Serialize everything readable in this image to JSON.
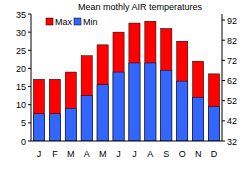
{
  "chart_data": {
    "type": "bar",
    "title": "Mean mothly AIR temperatures",
    "categories": [
      "J",
      "F",
      "M",
      "A",
      "M",
      "J",
      "J",
      "A",
      "S",
      "O",
      "N",
      "D"
    ],
    "series": [
      {
        "name": "Max",
        "color": "#ff0000",
        "values": [
          17,
          17,
          19,
          23.5,
          26.5,
          30,
          32.5,
          33,
          31,
          27.5,
          22,
          18.5
        ]
      },
      {
        "name": "Min",
        "color": "#3366ff",
        "values": [
          7.5,
          7.5,
          9,
          12.5,
          15.5,
          19,
          21.5,
          21.5,
          19.5,
          16.5,
          12,
          9.5
        ]
      }
    ],
    "ylim": [
      0,
      35
    ],
    "yticks": [
      0,
      5,
      10,
      15,
      20,
      25,
      30,
      35
    ],
    "y2lim": [
      32,
      95
    ],
    "y2ticks": [
      32,
      42,
      52,
      62,
      72,
      82,
      92
    ],
    "grid": false,
    "legend": "top-left"
  }
}
